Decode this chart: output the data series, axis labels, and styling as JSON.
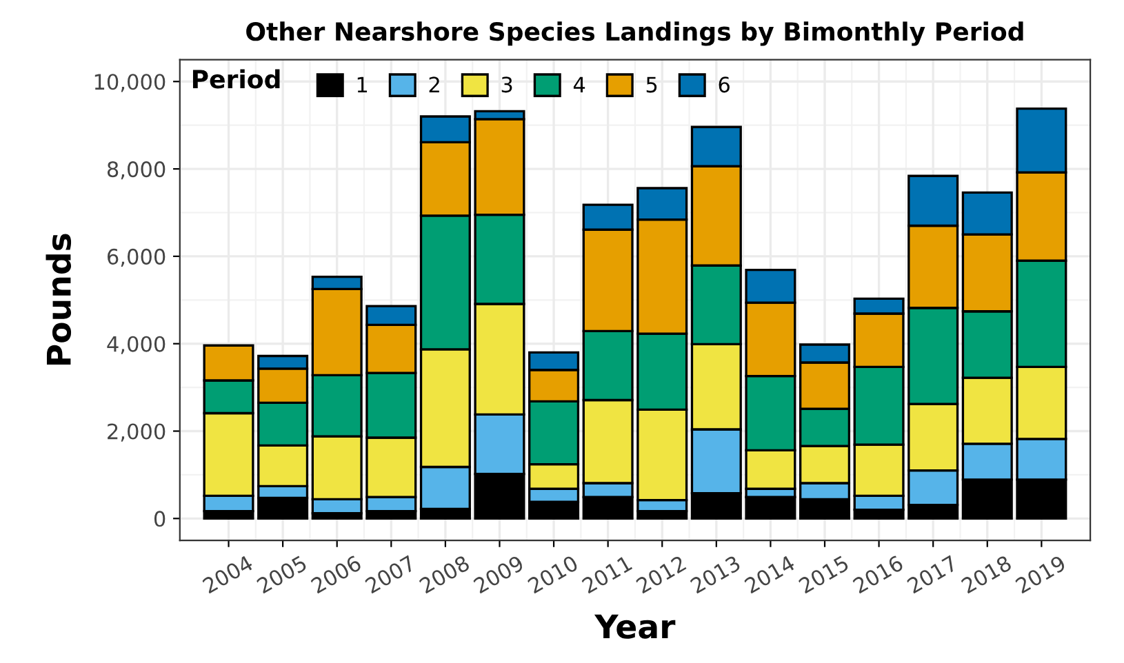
{
  "chart_data": {
    "type": "bar",
    "stacked": true,
    "title": "Other Nearshore Species Landings by Bimonthly Period",
    "xlabel": "Year",
    "ylabel": "Pounds",
    "legend_title": "Period",
    "legend": "top left",
    "grid": true,
    "categories": [
      "2004",
      "2005",
      "2006",
      "2007",
      "2008",
      "2009",
      "2010",
      "2011",
      "2012",
      "2013",
      "2014",
      "2015",
      "2016",
      "2017",
      "2018",
      "2019"
    ],
    "ylim": [
      -500,
      10500
    ],
    "yticks": [
      {
        "value": 0,
        "label": "0"
      },
      {
        "value": 2000,
        "label": "2,000"
      },
      {
        "value": 4000,
        "label": "4,000"
      },
      {
        "value": 6000,
        "label": "6,000"
      },
      {
        "value": 8000,
        "label": "8,000"
      },
      {
        "value": 10000,
        "label": "10,000"
      }
    ],
    "series": [
      {
        "name": "1",
        "color": "#000000",
        "values": [
          170,
          470,
          120,
          170,
          220,
          1020,
          380,
          490,
          170,
          580,
          490,
          440,
          200,
          310,
          890,
          890
        ]
      },
      {
        "name": "2",
        "color": "#56b4e9",
        "values": [
          350,
          270,
          320,
          320,
          960,
          1360,
          300,
          320,
          250,
          1460,
          190,
          370,
          320,
          790,
          820,
          930
        ]
      },
      {
        "name": "3",
        "color": "#f0e442",
        "values": [
          1890,
          930,
          1440,
          1360,
          2690,
          2530,
          560,
          1900,
          2070,
          1950,
          880,
          850,
          1170,
          1520,
          1510,
          1650
        ]
      },
      {
        "name": "4",
        "color": "#009e73",
        "values": [
          750,
          980,
          1400,
          1480,
          3060,
          2040,
          1440,
          1580,
          1740,
          1800,
          1700,
          850,
          1780,
          2200,
          1520,
          2430
        ]
      },
      {
        "name": "5",
        "color": "#e69f00",
        "values": [
          800,
          780,
          1970,
          1100,
          1680,
          2190,
          720,
          2320,
          2610,
          2270,
          1680,
          1060,
          1220,
          1880,
          1760,
          2020
        ]
      },
      {
        "name": "6",
        "color": "#0072b2",
        "values": [
          null,
          290,
          280,
          430,
          590,
          180,
          400,
          570,
          720,
          900,
          750,
          410,
          340,
          1140,
          960,
          1460
        ]
      }
    ]
  }
}
